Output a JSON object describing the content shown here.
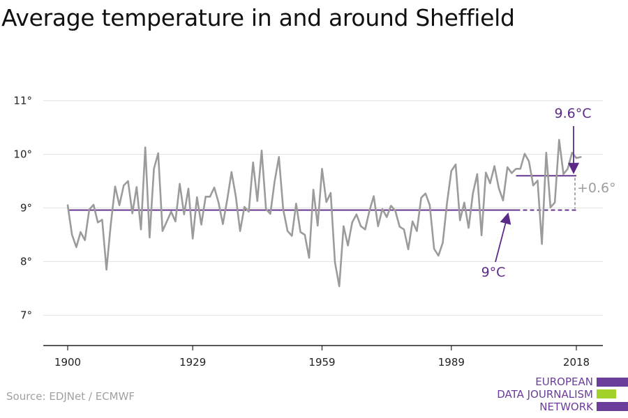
{
  "title": "Average temperature in and around Sheffield",
  "source": "Source: EDJNet / ECMWF",
  "logo": {
    "lines": [
      "EUROPEAN",
      "DATA JOURNALISM",
      "NETWORK"
    ],
    "colors": {
      "text": "#6a3d9a",
      "bar1": "#6a3d9a",
      "bar2": "#a3d12c",
      "bar3": "#6a3d9a"
    }
  },
  "colors": {
    "line": "#9b9b9b",
    "baseline": "#5b2a86",
    "recent": "#5b2a86",
    "gap": "#9e9e9e",
    "grid": "#e3e3e3",
    "axis": "#222222"
  },
  "chart_data": {
    "type": "line",
    "title": "Average temperature in and around Sheffield",
    "xlabel": "",
    "ylabel": "",
    "xlim": [
      1900,
      2018
    ],
    "ylim": [
      7,
      11
    ],
    "x_ticks": [
      1900,
      1929,
      1959,
      1989,
      2018
    ],
    "x_tick_labels": [
      "1900",
      "1929",
      "1959",
      "1989",
      "2018"
    ],
    "y_ticks": [
      7,
      8,
      9,
      10,
      11
    ],
    "y_tick_labels": [
      "7°",
      "8°",
      "9°",
      "10°",
      "11°"
    ],
    "grid": "horizontal",
    "series": [
      {
        "x": [
          1900,
          1901,
          1902,
          1903,
          1904,
          1905,
          1906,
          1907,
          1908,
          1909,
          1910,
          1911,
          1912,
          1913,
          1914,
          1915,
          1916,
          1917,
          1918,
          1919,
          1920,
          1921,
          1922,
          1923,
          1924,
          1925,
          1926,
          1927,
          1928,
          1929,
          1930,
          1931,
          1932,
          1933,
          1934,
          1935,
          1936,
          1937,
          1938,
          1939,
          1940,
          1941,
          1942,
          1943,
          1944,
          1945,
          1946,
          1947,
          1948,
          1949,
          1950,
          1951,
          1952,
          1953,
          1954,
          1955,
          1956,
          1957,
          1958,
          1959,
          1960,
          1961,
          1962,
          1963,
          1964,
          1965,
          1966,
          1967,
          1968,
          1969,
          1970,
          1971,
          1972,
          1973,
          1974,
          1975,
          1976,
          1977,
          1978,
          1979,
          1980,
          1981,
          1982,
          1983,
          1984,
          1985,
          1986,
          1987,
          1988,
          1989,
          1990,
          1991,
          1992,
          1993,
          1994,
          1995,
          1996,
          1997,
          1998,
          1999,
          2000,
          2001,
          2002,
          2003,
          2004,
          2005,
          2006,
          2007,
          2008,
          2009,
          2010,
          2011,
          2012,
          2013,
          2014,
          2015,
          2016,
          2017,
          2018,
          2019
        ],
        "values": [
          9.05,
          8.5,
          8.27,
          8.55,
          8.4,
          8.97,
          9.06,
          8.73,
          8.78,
          7.85,
          8.7,
          9.4,
          9.05,
          9.42,
          9.5,
          8.9,
          9.39,
          8.6,
          10.13,
          8.45,
          9.73,
          10.02,
          8.57,
          8.75,
          8.93,
          8.75,
          9.45,
          8.88,
          9.36,
          8.43,
          9.2,
          8.69,
          9.21,
          9.21,
          9.38,
          9.1,
          8.7,
          9.15,
          9.67,
          9.22,
          8.57,
          9.02,
          8.93,
          9.85,
          9.13,
          10.07,
          8.98,
          8.89,
          9.49,
          9.95,
          8.97,
          8.57,
          8.48,
          9.08,
          8.55,
          8.5,
          8.07,
          9.34,
          8.67,
          9.73,
          9.11,
          9.28,
          7.99,
          7.54,
          8.66,
          8.3,
          8.73,
          8.88,
          8.66,
          8.6,
          8.95,
          9.22,
          8.66,
          8.98,
          8.83,
          9.04,
          8.95,
          8.65,
          8.6,
          8.23,
          8.75,
          8.57,
          9.19,
          9.27,
          9.05,
          8.24,
          8.11,
          8.35,
          9.1,
          9.69,
          9.81,
          8.77,
          9.1,
          8.63,
          9.27,
          9.63,
          8.49,
          9.66,
          9.46,
          9.78,
          9.37,
          9.14,
          9.76,
          9.65,
          9.73,
          9.73,
          10.01,
          9.87,
          9.42,
          9.51,
          8.33,
          10.03,
          9.01,
          9.1,
          10.27,
          9.63,
          9.73,
          10.03,
          9.93,
          9.95
        ]
      }
    ],
    "reference_lines": [
      {
        "label": "9°C",
        "value": 8.96,
        "x_start": 1900,
        "x_end": 2004,
        "style": "solid"
      },
      {
        "label": "",
        "value": 8.96,
        "x_start": 2004,
        "x_end": 2018,
        "style": "dashed"
      },
      {
        "label": "9.6°C",
        "value": 9.6,
        "x_start": 2004,
        "x_end": 2018,
        "style": "solid"
      }
    ],
    "annotations": [
      {
        "text": "9.6°C",
        "pointer_x": 2018,
        "pointer_y": 9.6
      },
      {
        "text": "9°C",
        "pointer_x": 2002,
        "pointer_y": 8.96
      },
      {
        "text": "+0.6°",
        "between": [
          8.96,
          9.6
        ],
        "at_x": 2018
      }
    ]
  }
}
